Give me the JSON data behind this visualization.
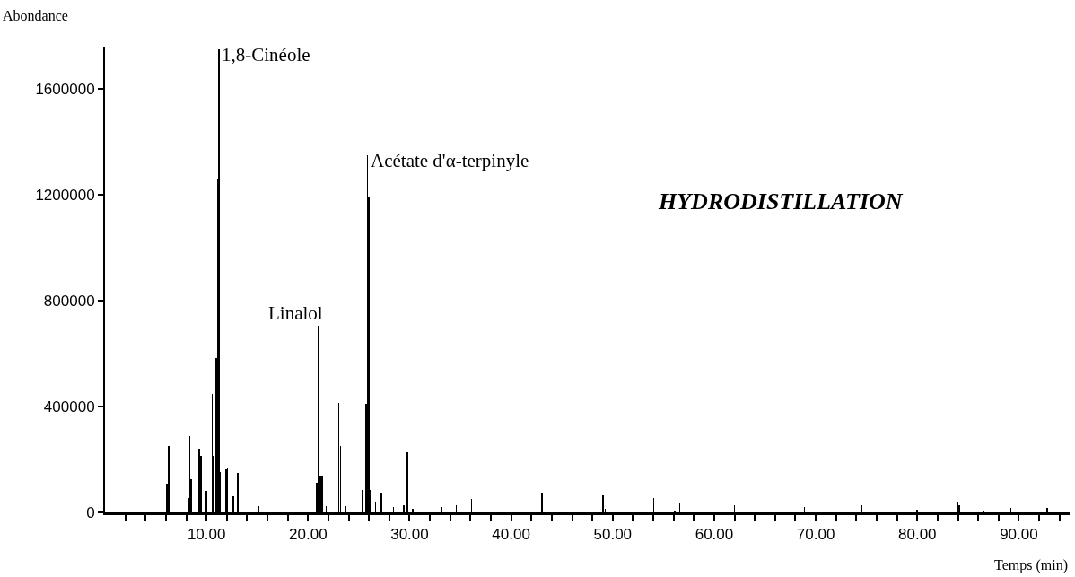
{
  "chart_data": {
    "type": "bar",
    "ylabel": "Abondance",
    "xlabel": "Temps (min)",
    "annotations": [
      {
        "text": "1,8-Cinéole",
        "x": 11.24,
        "y": 1750000
      },
      {
        "text": "Linalol",
        "x": 20.98,
        "y": 707000
      },
      {
        "text": "Acétate d'α-terpinyle",
        "x": 25.85,
        "y": 1349000
      },
      "HYDRODISTILLATION"
    ],
    "x": [
      6.1,
      6.25,
      8.2,
      8.36,
      8.5,
      9.27,
      9.45,
      10.0,
      10.55,
      10.7,
      10.98,
      11.1,
      11.24,
      11.32,
      11.93,
      12.07,
      12.65,
      13.1,
      13.3,
      15.1,
      19.4,
      20.87,
      20.98,
      21.2,
      21.4,
      21.8,
      23.02,
      23.2,
      23.7,
      25.3,
      25.7,
      25.85,
      26.0,
      26.1,
      26.65,
      27.2,
      28.4,
      29.45,
      29.78,
      30.3,
      33.15,
      34.6,
      36.1,
      38.4,
      43.05,
      46.6,
      49.06,
      49.26,
      54.05,
      56.1,
      56.6,
      62.0,
      68.9,
      74.55,
      80.0,
      84.0,
      84.13,
      86.5,
      89.2,
      92.77
    ],
    "values": [
      107000,
      250000,
      55000,
      289000,
      125000,
      240000,
      215000,
      83000,
      448000,
      215000,
      584000,
      1262000,
      1750000,
      153000,
      163000,
      167000,
      60000,
      150000,
      49000,
      24000,
      40000,
      111000,
      707000,
      136000,
      136000,
      25000,
      415000,
      250000,
      25000,
      86000,
      410000,
      1349000,
      1189000,
      86000,
      42000,
      74000,
      19000,
      27000,
      228000,
      14000,
      19000,
      28000,
      51000,
      null,
      76000,
      null,
      65000,
      13000,
      55000,
      7000,
      37000,
      26000,
      22000,
      26000,
      10000,
      42000,
      26000,
      7000,
      17000,
      16000
    ],
    "color": "#000000",
    "xlim": [
      0,
      95
    ],
    "xticks": [
      {
        "value": 2,
        "label": null
      },
      {
        "value": 4,
        "label": null
      },
      {
        "value": 6,
        "label": null
      },
      {
        "value": 8,
        "label": null
      },
      {
        "value": 10,
        "label": "10.00"
      },
      {
        "value": 12,
        "label": null
      },
      {
        "value": 14,
        "label": null
      },
      {
        "value": 16,
        "label": null
      },
      {
        "value": 18,
        "label": null
      },
      {
        "value": 20,
        "label": "20.00"
      },
      {
        "value": 22,
        "label": null
      },
      {
        "value": 24,
        "label": null
      },
      {
        "value": 26,
        "label": null
      },
      {
        "value": 28,
        "label": null
      },
      {
        "value": 30,
        "label": "30.00"
      },
      {
        "value": 32,
        "label": null
      },
      {
        "value": 34,
        "label": null
      },
      {
        "value": 36,
        "label": null
      },
      {
        "value": 38,
        "label": null
      },
      {
        "value": 40,
        "label": "40.00"
      },
      {
        "value": 42,
        "label": null
      },
      {
        "value": 44,
        "label": null
      },
      {
        "value": 46,
        "label": null
      },
      {
        "value": 48,
        "label": null
      },
      {
        "value": 50,
        "label": "50.00"
      },
      {
        "value": 52,
        "label": null
      },
      {
        "value": 54,
        "label": null
      },
      {
        "value": 56,
        "label": null
      },
      {
        "value": 58,
        "label": null
      },
      {
        "value": 60,
        "label": "60.00"
      },
      {
        "value": 62,
        "label": null
      },
      {
        "value": 64,
        "label": null
      },
      {
        "value": 66,
        "label": null
      },
      {
        "value": 68,
        "label": null
      },
      {
        "value": 70,
        "label": "70.00"
      },
      {
        "value": 72,
        "label": null
      },
      {
        "value": 74,
        "label": null
      },
      {
        "value": 76,
        "label": null
      },
      {
        "value": 78,
        "label": null
      },
      {
        "value": 80,
        "label": "80.00"
      },
      {
        "value": 82,
        "label": null
      },
      {
        "value": 84,
        "label": null
      },
      {
        "value": 86,
        "label": null
      },
      {
        "value": 88,
        "label": null
      },
      {
        "value": 90,
        "label": "90.00"
      },
      {
        "value": 92,
        "label": null
      },
      {
        "value": 94,
        "label": null
      }
    ],
    "ylim": [
      0,
      1760000
    ],
    "yticks": [
      0,
      400000,
      800000,
      1200000,
      1600000
    ],
    "grid": false
  }
}
